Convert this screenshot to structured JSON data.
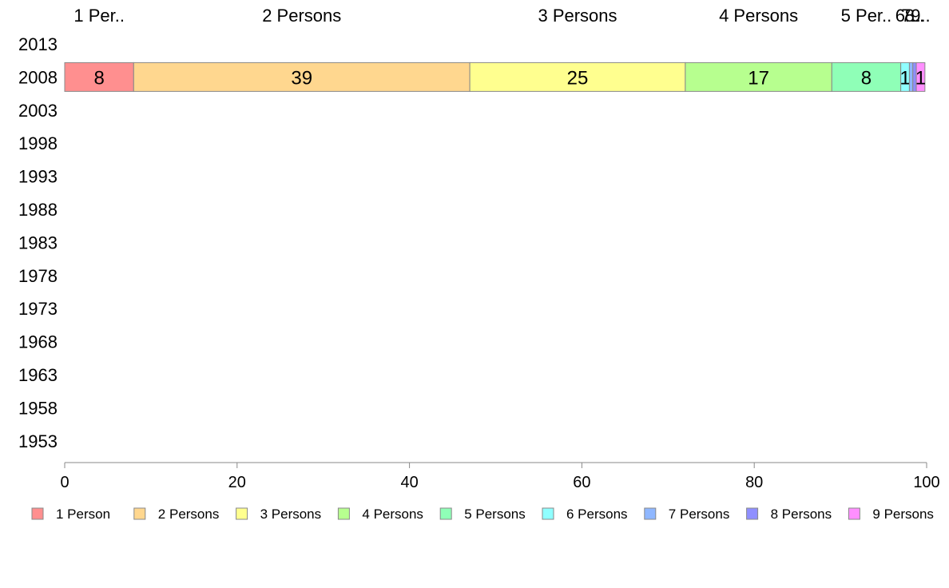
{
  "chart_data": {
    "type": "bar",
    "orientation": "horizontal",
    "stacked": true,
    "title": "",
    "xlabel": "",
    "ylabel": "",
    "xlim": [
      0,
      100
    ],
    "x_ticks": [
      "0",
      "20",
      "40",
      "60",
      "80",
      "100"
    ],
    "categories": [
      "2013",
      "2008",
      "2003",
      "1998",
      "1993",
      "1988",
      "1983",
      "1978",
      "1973",
      "1968",
      "1963",
      "1958",
      "1953"
    ],
    "series": [
      {
        "name": "1 Person",
        "top_label": "1 Per..",
        "color": "#ff8f8f",
        "values": [
          null,
          8,
          null,
          null,
          null,
          null,
          null,
          null,
          null,
          null,
          null,
          null,
          null
        ]
      },
      {
        "name": "2 Persons",
        "top_label": "2 Persons",
        "color": "#ffd78f",
        "values": [
          null,
          39,
          null,
          null,
          null,
          null,
          null,
          null,
          null,
          null,
          null,
          null,
          null
        ]
      },
      {
        "name": "3 Persons",
        "top_label": "3 Persons",
        "color": "#ffff8f",
        "values": [
          null,
          25,
          null,
          null,
          null,
          null,
          null,
          null,
          null,
          null,
          null,
          null,
          null
        ]
      },
      {
        "name": "4 Persons",
        "top_label": "4 Persons",
        "color": "#b7ff8f",
        "values": [
          null,
          17,
          null,
          null,
          null,
          null,
          null,
          null,
          null,
          null,
          null,
          null,
          null
        ]
      },
      {
        "name": "5 Persons",
        "top_label": "5 Per..",
        "color": "#8fffb7",
        "values": [
          null,
          8,
          null,
          null,
          null,
          null,
          null,
          null,
          null,
          null,
          null,
          null,
          null
        ]
      },
      {
        "name": "6 Persons",
        "top_label": "6..",
        "color": "#8fffff",
        "values": [
          null,
          1,
          null,
          null,
          null,
          null,
          null,
          null,
          null,
          null,
          null,
          null,
          null
        ]
      },
      {
        "name": "7 Persons",
        "top_label": "7..",
        "color": "#8fb7ff",
        "values": [
          null,
          0.4,
          null,
          null,
          null,
          null,
          null,
          null,
          null,
          null,
          null,
          null,
          null
        ]
      },
      {
        "name": "8 Persons",
        "top_label": "8..",
        "color": "#8f8fff",
        "values": [
          null,
          0.4,
          null,
          null,
          null,
          null,
          null,
          null,
          null,
          null,
          null,
          null,
          null
        ]
      },
      {
        "name": "9 Persons",
        "top_label": "9..",
        "color": "#ff8fff",
        "values": [
          null,
          1,
          null,
          null,
          null,
          null,
          null,
          null,
          null,
          null,
          null,
          null,
          null
        ]
      }
    ],
    "segment_labels_shown": [
      true,
      true,
      true,
      true,
      true,
      true,
      false,
      false,
      true
    ],
    "grid": false,
    "legend_position": "bottom"
  }
}
